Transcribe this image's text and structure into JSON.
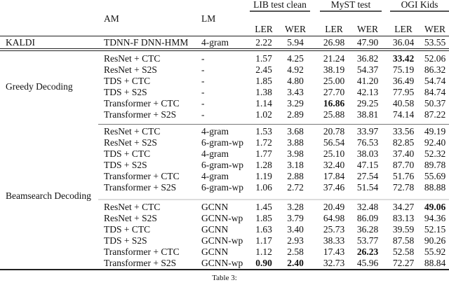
{
  "groups": [
    "LIB test clean",
    "MyST test",
    "OGI Kids"
  ],
  "headers": {
    "am": "AM",
    "lm": "LM",
    "cols": [
      "LER",
      "WER",
      "LER",
      "WER",
      "LER",
      "WER"
    ]
  },
  "sections": [
    {
      "label": "KALDI",
      "rows": [
        {
          "am": "TDNN-F DNN-HMM",
          "lm": "4-gram",
          "v": [
            "2.22",
            "5.94",
            "26.98",
            "47.90",
            "36.04",
            "53.55"
          ],
          "bold": []
        }
      ]
    },
    {
      "label": "Greedy Decoding",
      "rows": [
        {
          "am": "ResNet + CTC",
          "lm": "-",
          "v": [
            "1.57",
            "4.25",
            "21.24",
            "36.82",
            "33.42",
            "52.06"
          ],
          "bold": [
            4
          ]
        },
        {
          "am": "ResNet + S2S",
          "lm": "-",
          "v": [
            "2.45",
            "4.92",
            "38.19",
            "54.37",
            "75.19",
            "86.32"
          ],
          "bold": []
        },
        {
          "am": "TDS + CTC",
          "lm": "-",
          "v": [
            "1.85",
            "4.80",
            "25.00",
            "41.20",
            "36.49",
            "54.74"
          ],
          "bold": []
        },
        {
          "am": "TDS + S2S",
          "lm": "-",
          "v": [
            "1.38",
            "3.43",
            "27.70",
            "42.13",
            "77.95",
            "84.74"
          ],
          "bold": []
        },
        {
          "am": "Transformer + CTC",
          "lm": "-",
          "v": [
            "1.14",
            "3.29",
            "16.86",
            "29.25",
            "40.58",
            "50.37"
          ],
          "bold": [
            2
          ]
        },
        {
          "am": "Transformer + S2S",
          "lm": "-",
          "v": [
            "1.02",
            "2.89",
            "25.88",
            "38.81",
            "74.14",
            "87.22"
          ],
          "bold": []
        }
      ]
    },
    {
      "label": "Beamsearch Decoding",
      "rows": [
        {
          "am": "ResNet + CTC",
          "lm": "4-gram",
          "v": [
            "1.53",
            "3.68",
            "20.78",
            "33.97",
            "33.56",
            "49.19"
          ],
          "bold": []
        },
        {
          "am": "ResNet + S2S",
          "lm": "6-gram-wp",
          "v": [
            "1.72",
            "3.88",
            "56.54",
            "76.53",
            "82.85",
            "92.40"
          ],
          "bold": []
        },
        {
          "am": "TDS + CTC",
          "lm": "4-gram",
          "v": [
            "1.77",
            "3.98",
            "25.10",
            "38.03",
            "37.40",
            "52.32"
          ],
          "bold": []
        },
        {
          "am": "TDS + S2S",
          "lm": "6-gram-wp",
          "v": [
            "1.28",
            "3.18",
            "32.40",
            "47.15",
            "87.70",
            "89.78"
          ],
          "bold": []
        },
        {
          "am": "Transformer + CTC",
          "lm": "4-gram",
          "v": [
            "1.19",
            "2.88",
            "17.84",
            "27.54",
            "51.76",
            "55.69"
          ],
          "bold": []
        },
        {
          "am": "Transformer + S2S",
          "lm": "6-gram-wp",
          "v": [
            "1.06",
            "2.72",
            "37.46",
            "51.54",
            "72.78",
            "88.88"
          ],
          "bold": []
        },
        {
          "am": "ResNet + CTC",
          "lm": "GCNN",
          "v": [
            "1.45",
            "3.28",
            "20.49",
            "32.48",
            "34.27",
            "49.06"
          ],
          "bold": [
            5
          ]
        },
        {
          "am": "ResNet + S2S",
          "lm": "GCNN-wp",
          "v": [
            "1.85",
            "3.79",
            "64.98",
            "86.09",
            "83.13",
            "94.36"
          ],
          "bold": []
        },
        {
          "am": "TDS + CTC",
          "lm": "GCNN",
          "v": [
            "1.63",
            "3.40",
            "25.73",
            "36.28",
            "39.59",
            "52.15"
          ],
          "bold": []
        },
        {
          "am": "TDS + S2S",
          "lm": "GCNN-wp",
          "v": [
            "1.17",
            "2.93",
            "38.33",
            "53.77",
            "87.58",
            "90.26"
          ],
          "bold": []
        },
        {
          "am": "Transformer + CTC",
          "lm": "GCNN",
          "v": [
            "1.12",
            "2.58",
            "17.43",
            "26.23",
            "52.58",
            "55.92"
          ],
          "bold": [
            3
          ]
        },
        {
          "am": "Transformer + S2S",
          "lm": "GCNN-wp",
          "v": [
            "0.90",
            "2.40",
            "32.73",
            "45.96",
            "72.27",
            "88.84"
          ],
          "bold": [
            0,
            1
          ]
        }
      ]
    }
  ],
  "caption": "Table 3:"
}
